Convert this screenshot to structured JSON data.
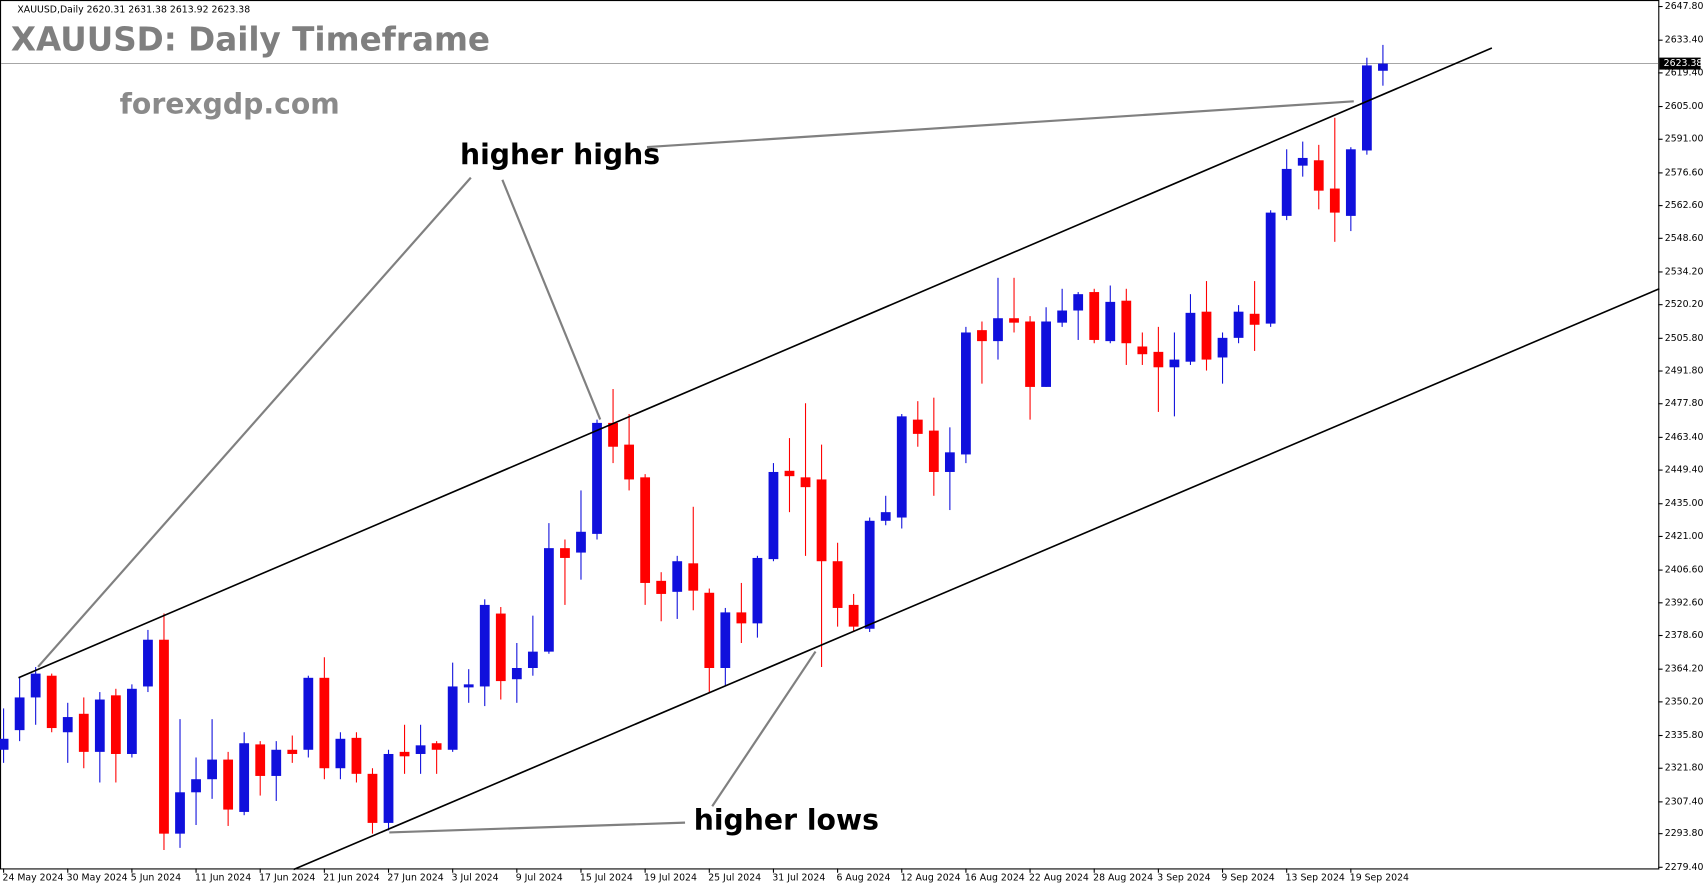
{
  "chart_data": {
    "type": "candlestick",
    "header": "XAUUSD,Daily  2620.31 2631.38 2613.92 2623.38",
    "title": "XAUUSD: Daily Timeframe",
    "subtitle": "forexgdp.com",
    "annotations": [
      "higher highs",
      "higher lows"
    ],
    "categories": [
      "24 May 2024",
      null,
      null,
      null,
      "30 May 2024",
      null,
      null,
      null,
      "5 Jun 2024",
      null,
      null,
      null,
      "11 Jun 2024",
      null,
      null,
      null,
      "17 Jun 2024",
      null,
      null,
      null,
      "21 Jun 2024",
      null,
      null,
      null,
      "27 Jun 2024",
      null,
      null,
      null,
      "3 Jul 2024",
      null,
      null,
      null,
      "9 Jul 2024",
      null,
      null,
      null,
      "15 Jul 2024",
      null,
      null,
      null,
      "19 Jul 2024",
      null,
      null,
      null,
      "25 Jul 2024",
      null,
      null,
      null,
      "31 Jul 2024",
      null,
      null,
      null,
      "6 Aug 2024",
      null,
      null,
      null,
      "12 Aug 2024",
      null,
      null,
      null,
      "16 Aug 2024",
      null,
      null,
      null,
      "22 Aug 2024",
      null,
      null,
      null,
      "28 Aug 2024",
      null,
      null,
      null,
      "3 Sep 2024",
      null,
      null,
      null,
      "9 Sep 2024",
      null,
      null,
      null,
      "13 Sep 2024",
      null,
      null,
      null,
      "19 Sep 2024",
      null,
      null
    ],
    "open": [
      2329.7,
      2338.1,
      2352.1,
      2361.4,
      2337.2,
      2345.1,
      2328.8,
      2353.0,
      2327.9,
      2356.8,
      2376.8,
      2293.8,
      2311.5,
      2317.1,
      2325.5,
      2303.1,
      2332.0,
      2318.5,
      2329.7,
      2329.7,
      2360.5,
      2321.8,
      2334.8,
      2319.4,
      2298.4,
      2328.8,
      2327.9,
      2332.5,
      2329.7,
      2356.4,
      2356.8,
      2388.0,
      2359.9,
      2364.7,
      2371.7,
      2416.0,
      2414.1,
      2422.1,
      2469.6,
      2460.3,
      2446.3,
      2402.0,
      2397.3,
      2409.5,
      2396.9,
      2364.7,
      2388.5,
      2383.8,
      2411.3,
      2449.1,
      2446.3,
      2445.4,
      2410.4,
      2391.7,
      2381.5,
      2427.7,
      2429.1,
      2471.0,
      2466.3,
      2448.6,
      2456.1,
      2509.3,
      2504.6,
      2514.4,
      2513.0,
      2485.0,
      2512.5,
      2517.7,
      2525.6,
      2504.6,
      2521.9,
      2502.3,
      2500.0,
      2493.4,
      2495.8,
      2517.2,
      2497.6,
      2506.0,
      2516.3,
      2512.1,
      2558.2,
      2579.7,
      2582.0,
      2569.9,
      2558.2,
      2586.2,
      2620.31
    ],
    "high": [
      2347.4,
      2360.5,
      2365.1,
      2362.3,
      2349.8,
      2352.1,
      2354.4,
      2355.8,
      2357.7,
      2381.0,
      2388.0,
      2342.8,
      2326.4,
      2342.8,
      2328.8,
      2337.2,
      2333.4,
      2333.4,
      2335.8,
      2361.4,
      2369.3,
      2337.2,
      2337.2,
      2321.8,
      2329.7,
      2340.4,
      2340.4,
      2333.4,
      2367.0,
      2364.2,
      2394.1,
      2390.8,
      2375.4,
      2387.1,
      2426.7,
      2419.7,
      2440.7,
      2471.0,
      2484.1,
      2473.4,
      2447.7,
      2405.7,
      2412.7,
      2433.7,
      2398.7,
      2390.4,
      2401.1,
      2412.7,
      2452.4,
      2463.1,
      2478.0,
      2460.3,
      2418.3,
      2396.4,
      2429.1,
      2438.4,
      2473.4,
      2478.9,
      2480.4,
      2467.7,
      2510.7,
      2513.0,
      2531.7,
      2531.7,
      2515.3,
      2519.1,
      2527.0,
      2525.6,
      2527.0,
      2528.4,
      2527.0,
      2508.3,
      2510.7,
      2508.3,
      2524.7,
      2530.3,
      2508.3,
      2520.0,
      2530.3,
      2560.6,
      2586.7,
      2590.0,
      2588.6,
      2600.2,
      2587.6,
      2625.9,
      2631.38
    ],
    "low": [
      2324.1,
      2333.4,
      2340.4,
      2337.2,
      2324.1,
      2321.8,
      2315.7,
      2315.7,
      2326.4,
      2354.4,
      2286.8,
      2287.7,
      2297.5,
      2308.7,
      2297.1,
      2301.7,
      2310.1,
      2307.8,
      2324.1,
      2326.4,
      2317.1,
      2317.1,
      2315.7,
      2293.8,
      2295.2,
      2319.4,
      2319.4,
      2319.4,
      2328.8,
      2349.8,
      2348.4,
      2351.2,
      2349.8,
      2361.4,
      2370.8,
      2391.7,
      2402.5,
      2419.7,
      2452.4,
      2440.7,
      2391.7,
      2384.7,
      2385.7,
      2389.4,
      2354.4,
      2356.8,
      2375.4,
      2377.7,
      2410.4,
      2431.4,
      2412.7,
      2365.1,
      2382.4,
      2380.1,
      2380.1,
      2425.8,
      2424.4,
      2459.4,
      2438.4,
      2432.3,
      2452.4,
      2486.4,
      2496.7,
      2508.3,
      2471.0,
      2485.0,
      2510.7,
      2505.1,
      2503.7,
      2503.7,
      2494.4,
      2494.4,
      2474.3,
      2472.4,
      2494.4,
      2492.0,
      2486.4,
      2503.7,
      2500.4,
      2510.7,
      2556.4,
      2575.0,
      2561.0,
      2547.1,
      2551.7,
      2584.4,
      2613.92
    ],
    "close": [
      2334.4,
      2352.1,
      2362.3,
      2339.0,
      2343.7,
      2328.8,
      2351.2,
      2327.9,
      2355.8,
      2376.8,
      2293.8,
      2311.5,
      2317.1,
      2325.5,
      2304.1,
      2332.5,
      2318.5,
      2329.7,
      2327.9,
      2360.5,
      2321.8,
      2334.4,
      2319.4,
      2298.4,
      2327.9,
      2326.9,
      2331.6,
      2329.7,
      2356.8,
      2357.7,
      2391.7,
      2359.1,
      2364.7,
      2371.7,
      2416.0,
      2411.8,
      2423.0,
      2469.6,
      2459.4,
      2445.4,
      2401.1,
      2396.4,
      2410.4,
      2397.8,
      2364.7,
      2388.5,
      2383.8,
      2411.8,
      2448.6,
      2446.8,
      2442.1,
      2410.4,
      2390.4,
      2382.4,
      2427.7,
      2431.4,
      2472.4,
      2464.9,
      2448.6,
      2457.0,
      2508.3,
      2504.6,
      2514.4,
      2512.5,
      2485.0,
      2513.0,
      2517.7,
      2524.7,
      2505.1,
      2521.4,
      2503.7,
      2499.0,
      2493.4,
      2496.7,
      2516.7,
      2496.7,
      2506.0,
      2517.2,
      2511.6,
      2559.6,
      2578.3,
      2583.0,
      2569.0,
      2559.6,
      2586.7,
      2622.6,
      2623.38
    ],
    "up_color": "#1010dc",
    "down_color": "#ff0000",
    "last_price": {
      "value": 2623.38,
      "label": "2623.38"
    },
    "ylim": [
      2279.4,
      2647.8
    ],
    "yticks": [
      {
        "value": 2279.4,
        "label": "2279.40"
      },
      {
        "value": 2293.8,
        "label": "2293.80"
      },
      {
        "value": 2307.4,
        "label": "2307.40"
      },
      {
        "value": 2321.8,
        "label": "2321.80"
      },
      {
        "value": 2335.8,
        "label": "2335.80"
      },
      {
        "value": 2350.2,
        "label": "2350.20"
      },
      {
        "value": 2364.2,
        "label": "2364.20"
      },
      {
        "value": 2378.6,
        "label": "2378.60"
      },
      {
        "value": 2392.6,
        "label": "2392.60"
      },
      {
        "value": 2406.6,
        "label": "2406.60"
      },
      {
        "value": 2421,
        "label": "2421.00"
      },
      {
        "value": 2435,
        "label": "2435.00"
      },
      {
        "value": 2449.4,
        "label": "2449.40"
      },
      {
        "value": 2463.4,
        "label": "2463.40"
      },
      {
        "value": 2477.8,
        "label": "2477.80"
      },
      {
        "value": 2491.8,
        "label": "2491.80"
      },
      {
        "value": 2505.8,
        "label": "2505.80"
      },
      {
        "value": 2520.2,
        "label": "2520.20"
      },
      {
        "value": 2534.2,
        "label": "2534.20"
      },
      {
        "value": 2548.6,
        "label": "2548.60"
      },
      {
        "value": 2562.6,
        "label": "2562.60"
      },
      {
        "value": 2576.6,
        "label": "2576.60"
      },
      {
        "value": 2591,
        "label": "2591.00"
      },
      {
        "value": 2605,
        "label": "2605.00"
      },
      {
        "value": 2619.4,
        "label": "2619.40"
      },
      {
        "value": 2633.4,
        "label": "2633.40"
      },
      {
        "value": 2647.8,
        "label": "2647.80"
      }
    ]
  }
}
